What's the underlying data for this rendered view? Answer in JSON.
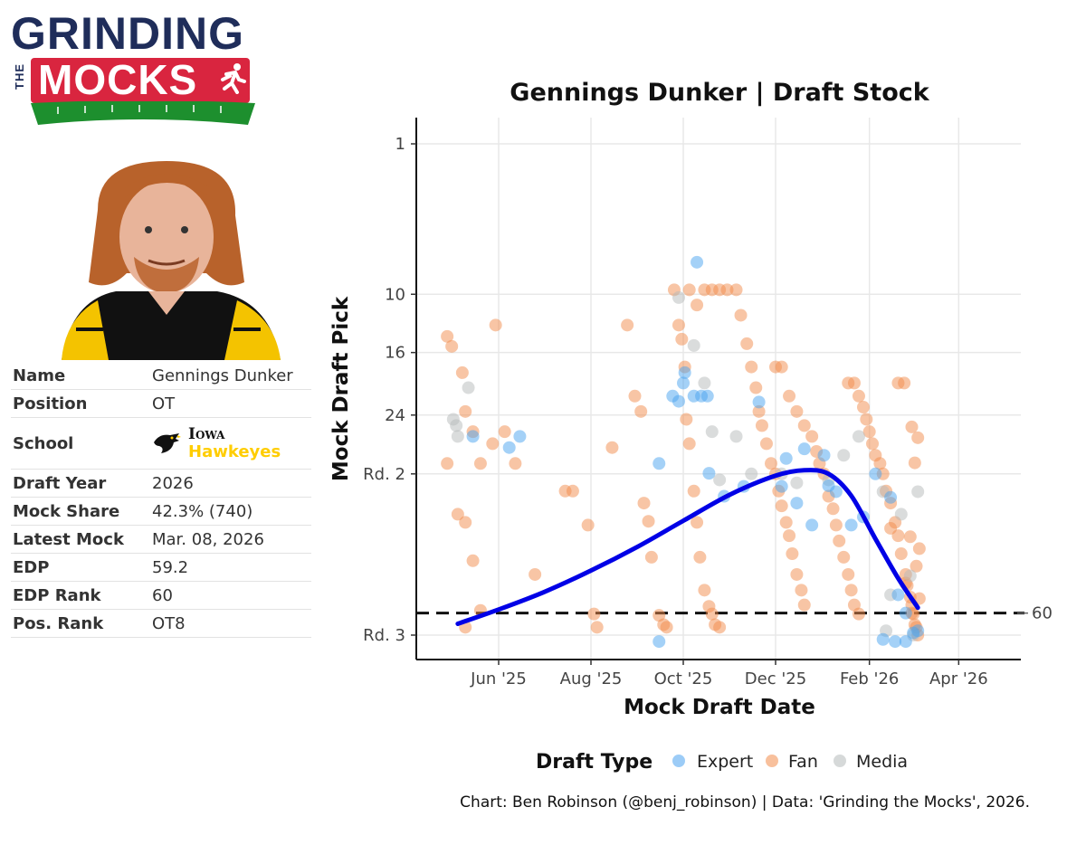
{
  "brand": {
    "logo_top": "GRINDING",
    "logo_the": "THE",
    "logo_bottom": "MOCKS"
  },
  "player": {
    "photo_icon": "player-headshot",
    "rows": [
      {
        "label": "Name",
        "value": "Gennings Dunker"
      },
      {
        "label": "Position",
        "value": "OT"
      },
      {
        "label": "School",
        "school_name": "Iowa",
        "school_mascot": "Hawkeyes",
        "school_icon": "hawkeye-logo-icon"
      },
      {
        "label": "Draft Year",
        "value": "2026"
      },
      {
        "label": "Mock Share",
        "value": "42.3% (740)"
      },
      {
        "label": "Latest Mock",
        "value": "Mar. 08, 2026"
      },
      {
        "label": "EDP",
        "value": "59.2"
      },
      {
        "label": "EDP Rank",
        "value": "60"
      },
      {
        "label": "Pos. Rank",
        "value": "OT8"
      }
    ]
  },
  "colors": {
    "expert": "#4aa3f0",
    "fan": "#f28c4b",
    "media": "#b5b9ba",
    "trend": "#0000e6",
    "school_gold": "#ffcd00"
  },
  "chart_data": {
    "type": "scatter",
    "title": "Gennings Dunker | Draft Stock",
    "xlabel": "Mock Draft Date",
    "ylabel": "Mock Draft Pick",
    "x_scale": "date",
    "y_scale": "sqrt, reversed",
    "xlim": [
      "2025-04-18",
      "2026-05-10"
    ],
    "ylim": [
      1,
      68
    ],
    "x_ticks": [
      {
        "date": "2025-06-01",
        "label": "Jun '25"
      },
      {
        "date": "2025-08-01",
        "label": "Aug '25"
      },
      {
        "date": "2025-10-01",
        "label": "Oct '25"
      },
      {
        "date": "2025-12-01",
        "label": "Dec '25"
      },
      {
        "date": "2026-02-01",
        "label": "Feb '26"
      },
      {
        "date": "2026-04-01",
        "label": "Apr '26"
      }
    ],
    "y_ticks": [
      {
        "value": 1,
        "label": "1"
      },
      {
        "value": 10,
        "label": "10"
      },
      {
        "value": 16,
        "label": "16"
      },
      {
        "value": 24,
        "label": "24"
      },
      {
        "value": 33,
        "label": "Rd. 2"
      },
      {
        "value": 65,
        "label": "Rd. 3"
      }
    ],
    "reference_line": {
      "value": 60,
      "label": "60",
      "style": "dashed"
    },
    "legend": {
      "title": "Draft Type",
      "position": "bottom",
      "entries": [
        "Expert",
        "Fan",
        "Media"
      ]
    },
    "caption": "Chart: Ben Robinson (@benj_robinson) | Data: 'Grinding the Mocks', 2026.",
    "trend_line": {
      "name": "Trend",
      "points": [
        {
          "date": "2025-05-05",
          "pick": 62.4
        },
        {
          "date": "2025-06-01",
          "pick": 59.2
        },
        {
          "date": "2025-07-01",
          "pick": 55.4
        },
        {
          "date": "2025-08-01",
          "pick": 50.9
        },
        {
          "date": "2025-09-01",
          "pick": 46.1
        },
        {
          "date": "2025-10-01",
          "pick": 41.2
        },
        {
          "date": "2025-11-01",
          "pick": 36.5
        },
        {
          "date": "2025-12-01",
          "pick": 33.3
        },
        {
          "date": "2025-12-20",
          "pick": 32.4
        },
        {
          "date": "2026-01-05",
          "pick": 33.0
        },
        {
          "date": "2026-01-20",
          "pick": 36.7
        },
        {
          "date": "2026-02-05",
          "pick": 44.6
        },
        {
          "date": "2026-02-20",
          "pick": 52.5
        },
        {
          "date": "2026-03-05",
          "pick": 58.8
        }
      ]
    },
    "series": [
      {
        "name": "Expert",
        "points": [
          [
            "2025-05-15",
            27.1
          ],
          [
            "2025-06-08",
            28.8
          ],
          [
            "2025-06-15",
            27.1
          ],
          [
            "2025-09-15",
            31.3
          ],
          [
            "2025-09-24",
            21.4
          ],
          [
            "2025-09-28",
            22.1
          ],
          [
            "2025-10-01",
            19.7
          ],
          [
            "2025-10-02",
            18.4
          ],
          [
            "2025-10-08",
            21.4
          ],
          [
            "2025-10-13",
            21.4
          ],
          [
            "2025-10-17",
            21.4
          ],
          [
            "2025-10-10",
            7.3
          ],
          [
            "2025-10-18",
            32.9
          ],
          [
            "2025-10-28",
            36.8
          ],
          [
            "2025-11-10",
            35.1
          ],
          [
            "2025-11-20",
            22.2
          ],
          [
            "2025-12-05",
            35.1
          ],
          [
            "2025-12-15",
            38.0
          ],
          [
            "2025-12-25",
            42.0
          ],
          [
            "2026-01-05",
            35.0
          ],
          [
            "2026-01-10",
            36.0
          ],
          [
            "2026-01-20",
            42.0
          ],
          [
            "2026-01-28",
            40.5
          ],
          [
            "2026-02-05",
            33.0
          ],
          [
            "2026-02-15",
            37.0
          ],
          [
            "2026-02-20",
            56.0
          ],
          [
            "2026-02-25",
            60.0
          ],
          [
            "2026-03-02",
            64.5
          ],
          [
            "2026-03-05",
            64.0
          ],
          [
            "2026-02-10",
            66.0
          ],
          [
            "2026-02-18",
            66.5
          ],
          [
            "2026-02-25",
            66.5
          ],
          [
            "2025-09-15",
            66.5
          ],
          [
            "2025-12-08",
            30.5
          ],
          [
            "2026-01-02",
            30.0
          ],
          [
            "2025-12-20",
            29.0
          ]
        ]
      },
      {
        "name": "Fan",
        "points": [
          [
            "2025-04-28",
            14.2
          ],
          [
            "2025-05-01",
            15.3
          ],
          [
            "2025-05-08",
            18.4
          ],
          [
            "2025-05-10",
            23.5
          ],
          [
            "2025-05-15",
            26.4
          ],
          [
            "2025-05-20",
            31.3
          ],
          [
            "2025-04-28",
            31.3
          ],
          [
            "2025-05-05",
            40.0
          ],
          [
            "2025-05-10",
            41.5
          ],
          [
            "2025-05-15",
            48.9
          ],
          [
            "2025-05-20",
            59.4
          ],
          [
            "2025-05-10",
            63.2
          ],
          [
            "2025-05-28",
            28.2
          ],
          [
            "2025-05-30",
            13.0
          ],
          [
            "2025-06-05",
            26.4
          ],
          [
            "2025-06-12",
            31.3
          ],
          [
            "2025-06-25",
            51.7
          ],
          [
            "2025-07-15",
            35.9
          ],
          [
            "2025-07-20",
            35.9
          ],
          [
            "2025-07-30",
            42.0
          ],
          [
            "2025-08-03",
            60.2
          ],
          [
            "2025-08-05",
            63.2
          ],
          [
            "2025-08-15",
            28.8
          ],
          [
            "2025-08-25",
            13.0
          ],
          [
            "2025-08-30",
            21.4
          ],
          [
            "2025-09-03",
            23.5
          ],
          [
            "2025-09-05",
            38.0
          ],
          [
            "2025-09-08",
            41.3
          ],
          [
            "2025-09-10",
            48.2
          ],
          [
            "2025-09-15",
            60.5
          ],
          [
            "2025-09-18",
            62.6
          ],
          [
            "2025-09-20",
            63.2
          ],
          [
            "2025-09-28",
            13.0
          ],
          [
            "2025-09-30",
            14.5
          ],
          [
            "2025-10-02",
            17.7
          ],
          [
            "2025-10-03",
            24.6
          ],
          [
            "2025-10-05",
            28.2
          ],
          [
            "2025-10-08",
            35.9
          ],
          [
            "2025-10-10",
            41.5
          ],
          [
            "2025-10-12",
            48.2
          ],
          [
            "2025-10-15",
            55.0
          ],
          [
            "2025-10-18",
            58.5
          ],
          [
            "2025-10-20",
            60.2
          ],
          [
            "2025-10-22",
            62.6
          ],
          [
            "2025-10-25",
            63.2
          ],
          [
            "2025-09-25",
            9.6
          ],
          [
            "2025-10-05",
            9.6
          ],
          [
            "2025-10-10",
            11.0
          ],
          [
            "2025-10-15",
            9.6
          ],
          [
            "2025-10-20",
            9.6
          ],
          [
            "2025-10-25",
            9.6
          ],
          [
            "2025-10-30",
            9.6
          ],
          [
            "2025-11-05",
            9.6
          ],
          [
            "2025-11-08",
            12.0
          ],
          [
            "2025-11-12",
            15.0
          ],
          [
            "2025-11-15",
            17.7
          ],
          [
            "2025-11-18",
            20.3
          ],
          [
            "2025-11-20",
            23.5
          ],
          [
            "2025-11-22",
            25.5
          ],
          [
            "2025-11-25",
            28.2
          ],
          [
            "2025-11-28",
            31.3
          ],
          [
            "2025-12-01",
            33.0
          ],
          [
            "2025-12-03",
            35.9
          ],
          [
            "2025-12-05",
            38.5
          ],
          [
            "2025-12-08",
            41.5
          ],
          [
            "2025-12-10",
            44.0
          ],
          [
            "2025-12-12",
            47.5
          ],
          [
            "2025-12-15",
            51.7
          ],
          [
            "2025-12-18",
            55.0
          ],
          [
            "2025-12-20",
            58.2
          ],
          [
            "2025-12-01",
            17.7
          ],
          [
            "2025-12-05",
            17.7
          ],
          [
            "2025-12-10",
            21.4
          ],
          [
            "2025-12-15",
            23.5
          ],
          [
            "2025-12-20",
            25.5
          ],
          [
            "2025-12-25",
            27.1
          ],
          [
            "2025-12-28",
            29.4
          ],
          [
            "2025-12-30",
            31.3
          ],
          [
            "2026-01-02",
            33.0
          ],
          [
            "2026-01-05",
            36.8
          ],
          [
            "2026-01-08",
            39.0
          ],
          [
            "2026-01-10",
            42.0
          ],
          [
            "2026-01-12",
            45.0
          ],
          [
            "2026-01-15",
            48.2
          ],
          [
            "2026-01-18",
            51.7
          ],
          [
            "2026-01-20",
            55.0
          ],
          [
            "2026-01-22",
            58.2
          ],
          [
            "2026-01-25",
            60.2
          ],
          [
            "2026-01-18",
            19.7
          ],
          [
            "2026-01-22",
            19.7
          ],
          [
            "2026-01-25",
            21.4
          ],
          [
            "2026-01-28",
            22.9
          ],
          [
            "2026-01-30",
            24.6
          ],
          [
            "2026-02-01",
            26.4
          ],
          [
            "2026-02-03",
            28.2
          ],
          [
            "2026-02-05",
            30.0
          ],
          [
            "2026-02-08",
            31.3
          ],
          [
            "2026-02-10",
            33.0
          ],
          [
            "2026-02-12",
            35.9
          ],
          [
            "2026-02-15",
            38.0
          ],
          [
            "2026-02-18",
            41.5
          ],
          [
            "2026-02-20",
            44.0
          ],
          [
            "2026-02-22",
            47.5
          ],
          [
            "2026-02-25",
            51.7
          ],
          [
            "2026-02-26",
            54.0
          ],
          [
            "2026-02-28",
            56.5
          ],
          [
            "2026-03-01",
            58.2
          ],
          [
            "2026-03-02",
            60.2
          ],
          [
            "2026-03-03",
            62.6
          ],
          [
            "2026-03-04",
            63.2
          ],
          [
            "2026-03-05",
            65.0
          ],
          [
            "2026-02-20",
            19.7
          ],
          [
            "2026-02-24",
            19.7
          ],
          [
            "2026-03-01",
            25.7
          ],
          [
            "2026-03-05",
            27.3
          ],
          [
            "2026-03-03",
            31.2
          ],
          [
            "2026-02-15",
            42.6
          ],
          [
            "2026-02-28",
            44.2
          ],
          [
            "2026-03-06",
            46.5
          ],
          [
            "2026-03-04",
            50.0
          ],
          [
            "2026-02-25",
            53.5
          ],
          [
            "2026-03-06",
            56.8
          ],
          [
            "2026-03-01",
            60.0
          ]
        ]
      },
      {
        "name": "Media",
        "points": [
          [
            "2025-05-02",
            24.6
          ],
          [
            "2025-05-04",
            25.5
          ],
          [
            "2025-05-05",
            27.1
          ],
          [
            "2025-05-12",
            20.3
          ],
          [
            "2025-09-28",
            10.3
          ],
          [
            "2025-10-08",
            15.2
          ],
          [
            "2025-10-15",
            19.7
          ],
          [
            "2025-10-20",
            26.4
          ],
          [
            "2025-10-25",
            34.0
          ],
          [
            "2025-11-05",
            27.1
          ],
          [
            "2025-11-15",
            33.0
          ],
          [
            "2025-12-05",
            33.0
          ],
          [
            "2025-12-15",
            34.5
          ],
          [
            "2026-01-05",
            34.0
          ],
          [
            "2026-01-15",
            30.0
          ],
          [
            "2026-01-25",
            27.1
          ],
          [
            "2026-02-10",
            36.0
          ],
          [
            "2026-02-22",
            40.0
          ],
          [
            "2026-03-05",
            36.0
          ],
          [
            "2026-02-15",
            56.0
          ],
          [
            "2026-02-28",
            52.0
          ],
          [
            "2026-03-02",
            65.0
          ],
          [
            "2026-02-12",
            64.0
          ]
        ]
      }
    ]
  }
}
